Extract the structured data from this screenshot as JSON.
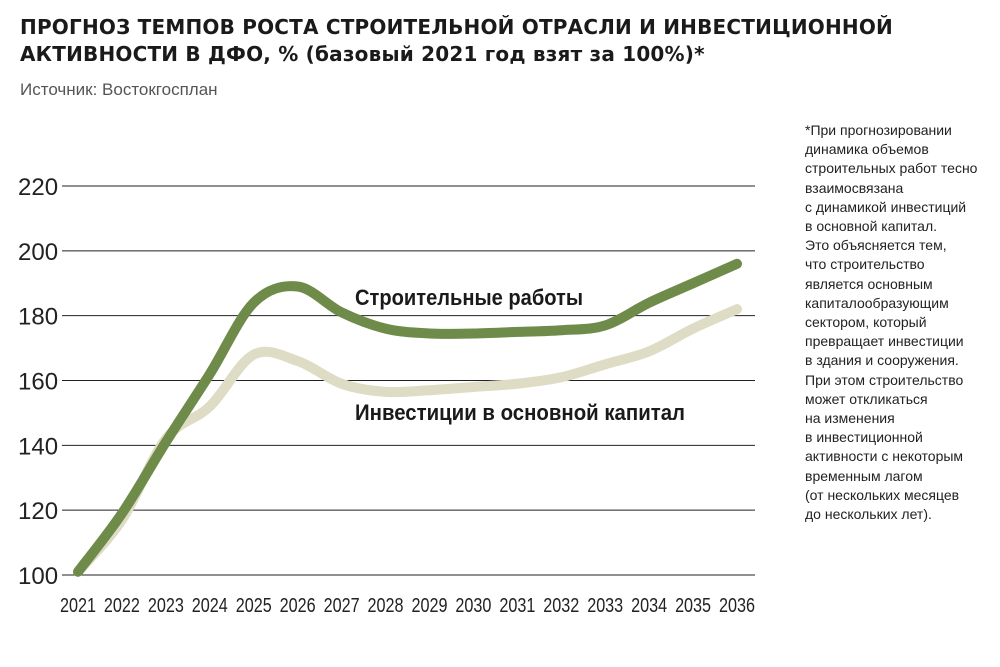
{
  "header": {
    "title": "ПРОГНОЗ ТЕМПОВ РОСТА СТРОИТЕЛЬНОЙ ОТРАСЛИ И ИНВЕСТИЦИОННОЙ АКТИВНОСТИ  В ДФО, % (базовый 2021 год взят за 100%)*",
    "source": "Источник: Востокгосплан"
  },
  "note": {
    "lines": [
      "*При прогнозировании",
      "динамика объемов",
      "строительных работ тесно",
      "взаимосвязана",
      "с динамикой инвестиций",
      "в основной капитал.",
      "Это объясняется тем,",
      "что строительство",
      "является основным",
      "капиталообразующим",
      "сектором, который",
      "превращает инвестиции",
      "в здания и сооружения.",
      "При этом строительство",
      "может откликаться",
      "на изменения",
      "в инвестиционной",
      "активности с некоторым",
      "временным лагом",
      "(от нескольких месяцев",
      "до нескольких лет)."
    ]
  },
  "chart_data": {
    "type": "line",
    "title": "ПРОГНОЗ ТЕМПОВ РОСТА СТРОИТЕЛЬНОЙ ОТРАСЛИ И ИНВЕСТИЦИОННОЙ АКТИВНОСТИ  В ДФО, % (базовый 2021 год взят за 100%)*",
    "xlabel": "",
    "ylabel": "",
    "categories": [
      "2021",
      "2022",
      "2023",
      "2024",
      "2025",
      "2026",
      "2027",
      "2028",
      "2029",
      "2030",
      "2031",
      "2032",
      "2033",
      "2034",
      "2035",
      "2036"
    ],
    "ylim": [
      100,
      220
    ],
    "yticks": [
      "100",
      "120",
      "140",
      "160",
      "180",
      "200",
      "220"
    ],
    "grid": true,
    "legend": "inline labels",
    "series": [
      {
        "name": "Строительные работы",
        "color": "#6e8b4a",
        "values": [
          101,
          119,
          141,
          162,
          184,
          189,
          181,
          176,
          174.5,
          174.5,
          175,
          175.5,
          177,
          184,
          190,
          196
        ]
      },
      {
        "name": "Инвестиции в основной капитал",
        "color": "#dedcc4",
        "values": [
          101,
          117,
          142,
          152,
          168,
          166,
          159,
          156.5,
          157,
          158,
          159,
          161,
          165,
          169,
          176,
          182
        ]
      }
    ]
  }
}
